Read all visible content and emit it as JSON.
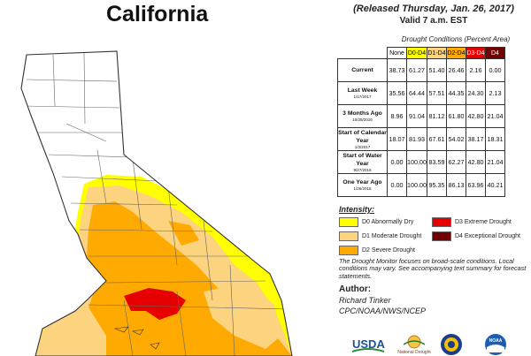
{
  "header": {
    "region": "California",
    "released": "(Released Thursday, Jan. 26, 2017)",
    "valid": "Valid 7 a.m. EST"
  },
  "table": {
    "title": "Drought Conditions (Percent Area)",
    "columns": [
      "None",
      "D0-D4",
      "D1-D4",
      "D2-D4",
      "D3-D4",
      "D4"
    ],
    "column_colors": [
      "#ffffff",
      "#ffff00",
      "#fcd37f",
      "#ffaa00",
      "#e60000",
      "#730000"
    ],
    "rows": [
      {
        "label": "Current",
        "sub": "",
        "values": [
          "38.73",
          "61.27",
          "51.40",
          "26.46",
          "2.16",
          "0.00"
        ]
      },
      {
        "label": "Last Week",
        "sub": "1/17/2017",
        "values": [
          "35.56",
          "64.44",
          "57.51",
          "44.35",
          "24.30",
          "2.13"
        ]
      },
      {
        "label": "3 Months Ago",
        "sub": "10/25/2016",
        "values": [
          "8.96",
          "91.04",
          "81.12",
          "61.80",
          "42.80",
          "21.04"
        ]
      },
      {
        "label": "Start of Calendar Year",
        "sub": "1/3/2017",
        "values": [
          "18.07",
          "81.93",
          "67.61",
          "54.02",
          "38.17",
          "18.31"
        ]
      },
      {
        "label": "Start of Water Year",
        "sub": "9/27/2016",
        "values": [
          "0.00",
          "100.00",
          "83.59",
          "62.27",
          "42.80",
          "21.04"
        ]
      },
      {
        "label": "One Year Ago",
        "sub": "1/26/2016",
        "values": [
          "0.00",
          "100.00",
          "95.35",
          "86.13",
          "63.96",
          "40.21"
        ]
      }
    ]
  },
  "legend": {
    "title": "Intensity:",
    "items": [
      {
        "label": "D0 Abnormally Dry",
        "color": "#ffff00"
      },
      {
        "label": "D1 Moderate Drought",
        "color": "#fcd37f"
      },
      {
        "label": "D2 Severe Drought",
        "color": "#ffaa00"
      },
      {
        "label": "D3 Extreme Drought",
        "color": "#e60000"
      },
      {
        "label": "D4 Exceptional Drought",
        "color": "#730000"
      }
    ]
  },
  "note": "The Drought Monitor focuses on broad-scale conditions. Local conditions may vary. See accompanying text summary for forecast statements.",
  "author": {
    "label": "Author:",
    "name": "Richard Tinker",
    "org": "CPC/NOAA/NWS/NCEP"
  },
  "logos": [
    {
      "name": "usda-logo",
      "text": "USDA"
    },
    {
      "name": "ndmc-logo",
      "text": "National Drought"
    },
    {
      "name": "dept-commerce-seal"
    },
    {
      "name": "noaa-logo",
      "text": "NOAA"
    }
  ]
}
